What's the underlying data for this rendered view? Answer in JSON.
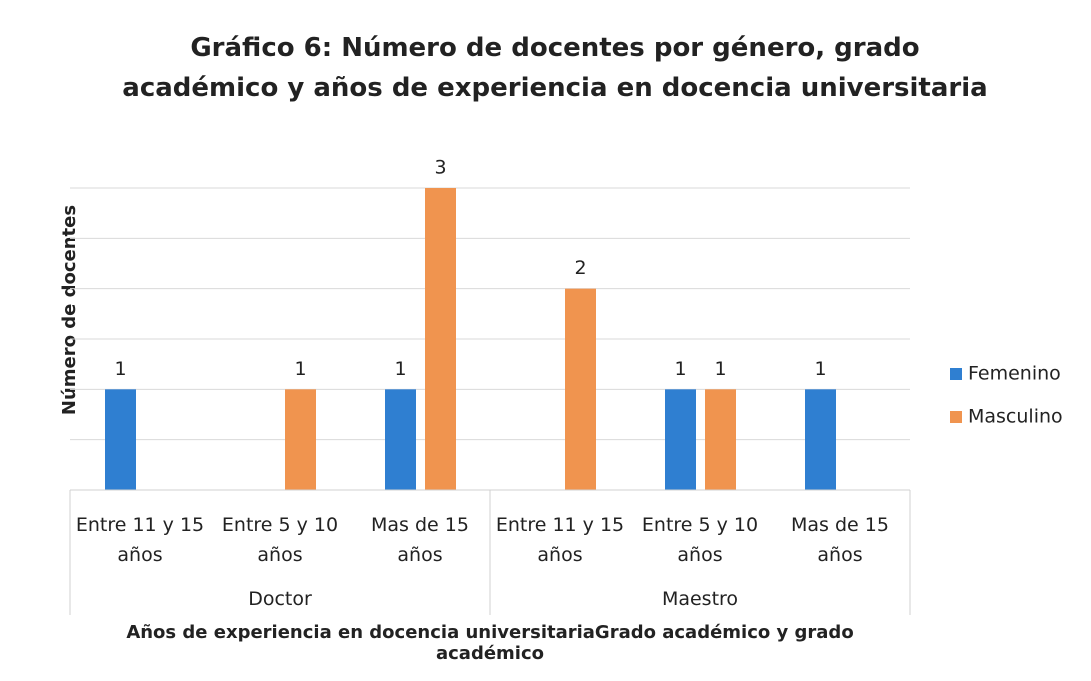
{
  "chart_data": {
    "type": "bar",
    "title": "Gráfico 6: Número de docentes por género, grado académico y años de experiencia en docencia universitaria",
    "ylabel": "Número de docentes",
    "xlabel": "Años de experiencia en docencia universitariaGrado académico y grado académico",
    "categories": [
      "Entre 11 y 15 años",
      "Entre 5 y 10 años",
      "Mas de 15 años",
      "Entre 11 y 15 años",
      "Entre 5 y 10 años",
      "Mas de 15 años"
    ],
    "groups": [
      "Doctor",
      "Maestro"
    ],
    "series": [
      {
        "name": "Femenino",
        "color": "#2f7fd1",
        "values": [
          1,
          null,
          1,
          null,
          1,
          1
        ]
      },
      {
        "name": "Masculino",
        "color": "#f0944f",
        "values": [
          null,
          1,
          3,
          2,
          1,
          null
        ]
      }
    ],
    "ylim": [
      0,
      3
    ],
    "yticks": [
      0,
      0.5,
      1,
      1.5,
      2,
      2.5,
      3
    ],
    "grid": true,
    "legend": "right"
  }
}
